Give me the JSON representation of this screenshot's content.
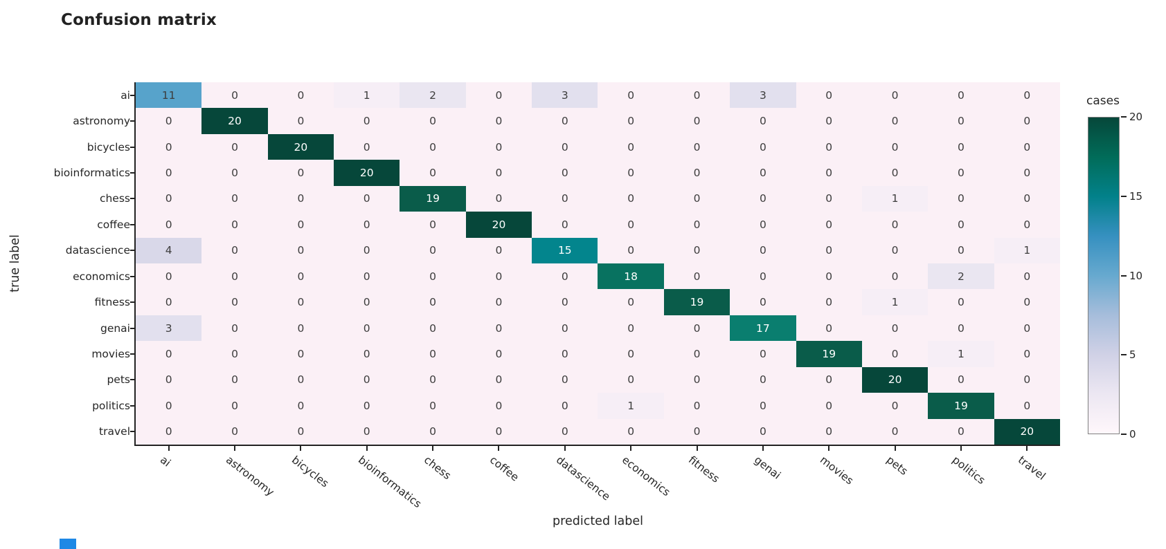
{
  "title": "Confusion matrix",
  "chart_data": {
    "type": "heatmap",
    "title": "Confusion matrix",
    "xlabel": "predicted label",
    "ylabel": "true label",
    "categories": [
      "ai",
      "astronomy",
      "bicycles",
      "bioinformatics",
      "chess",
      "coffee",
      "datascience",
      "economics",
      "fitness",
      "genai",
      "movies",
      "pets",
      "politics",
      "travel"
    ],
    "rows": [
      [
        11,
        0,
        0,
        1,
        2,
        0,
        3,
        0,
        0,
        3,
        0,
        0,
        0,
        0
      ],
      [
        0,
        20,
        0,
        0,
        0,
        0,
        0,
        0,
        0,
        0,
        0,
        0,
        0,
        0
      ],
      [
        0,
        0,
        20,
        0,
        0,
        0,
        0,
        0,
        0,
        0,
        0,
        0,
        0,
        0
      ],
      [
        0,
        0,
        0,
        20,
        0,
        0,
        0,
        0,
        0,
        0,
        0,
        0,
        0,
        0
      ],
      [
        0,
        0,
        0,
        0,
        19,
        0,
        0,
        0,
        0,
        0,
        0,
        1,
        0,
        0
      ],
      [
        0,
        0,
        0,
        0,
        0,
        20,
        0,
        0,
        0,
        0,
        0,
        0,
        0,
        0
      ],
      [
        4,
        0,
        0,
        0,
        0,
        0,
        15,
        0,
        0,
        0,
        0,
        0,
        0,
        1
      ],
      [
        0,
        0,
        0,
        0,
        0,
        0,
        0,
        18,
        0,
        0,
        0,
        0,
        2,
        0
      ],
      [
        0,
        0,
        0,
        0,
        0,
        0,
        0,
        0,
        19,
        0,
        0,
        1,
        0,
        0
      ],
      [
        3,
        0,
        0,
        0,
        0,
        0,
        0,
        0,
        0,
        17,
        0,
        0,
        0,
        0
      ],
      [
        0,
        0,
        0,
        0,
        0,
        0,
        0,
        0,
        0,
        0,
        19,
        0,
        1,
        0
      ],
      [
        0,
        0,
        0,
        0,
        0,
        0,
        0,
        0,
        0,
        0,
        0,
        20,
        0,
        0
      ],
      [
        0,
        0,
        0,
        0,
        0,
        0,
        0,
        1,
        0,
        0,
        0,
        0,
        19,
        0
      ],
      [
        0,
        0,
        0,
        0,
        0,
        0,
        0,
        0,
        0,
        0,
        0,
        0,
        0,
        20
      ]
    ],
    "value_range": [
      0,
      20
    ],
    "grid": false,
    "colorbar": {
      "title": "cases",
      "ticks": [
        0,
        5,
        10,
        15,
        20
      ],
      "min": 0,
      "max": 20,
      "orientation": "vertical",
      "position": "right"
    },
    "colormap_name": "PuBuGn",
    "colormap_gradient_top_to_bottom": [
      "#06473a",
      "#016c59",
      "#02818a",
      "#3690c0",
      "#67a9cf",
      "#a6bddb",
      "#d0d1e6",
      "#ece7f2",
      "#fff7fb"
    ],
    "value_colors": {
      "0": "#fbf0f6",
      "1": "#f6eef6",
      "2": "#eae6f1",
      "3": "#e2e0ee",
      "4": "#d9d8e9",
      "11": "#57a3cb",
      "15": "#03858d",
      "17": "#0a7e6f",
      "18": "#087260",
      "19": "#0a5c4a",
      "20": "#06473a"
    },
    "cell_text_dark": "#3d3d3d",
    "cell_text_light": "#ffffff",
    "white_text_threshold": 15,
    "axis_color": "#222222"
  },
  "misc": {
    "blue_fragment_color": "#1e88e5"
  }
}
